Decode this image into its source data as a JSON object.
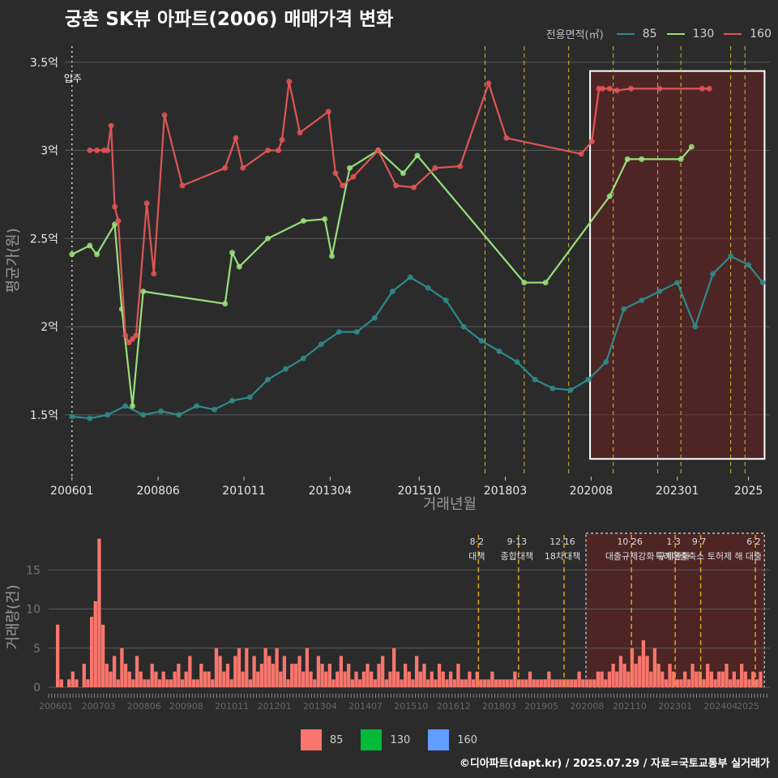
{
  "title": "궁촌 SK뷰 아파트(2006) 매매가격 변화",
  "legend": {
    "title": "전용면적(㎡)",
    "items": [
      {
        "label": "85",
        "color": "#2f8a8a"
      },
      {
        "label": "130",
        "color": "#98e07a"
      },
      {
        "label": "160",
        "color": "#e05555"
      }
    ]
  },
  "bar_legend": [
    {
      "label": "85",
      "color": "#f8766d"
    },
    {
      "label": "130",
      "color": "#00ba38"
    },
    {
      "label": "160",
      "color": "#619cff"
    }
  ],
  "source": "©디아파트(dapt.kr) / 2025.07.29 / 자료=국토교통부 실거래가",
  "chart_data": [
    {
      "type": "line",
      "xlabel": "거래년월",
      "ylabel": "평균가(원)",
      "x_ticks": [
        "200601",
        "200806",
        "201011",
        "201304",
        "201510",
        "201803",
        "202008",
        "202301",
        "2025"
      ],
      "y_ticks": [
        "1.5억",
        "2억",
        "2.5억",
        "3억",
        "3.5억"
      ],
      "y_tick_values": [
        1.5,
        2.0,
        2.5,
        3.0,
        3.5
      ],
      "ylim": [
        1.15,
        3.6
      ],
      "xlim": [
        2005.8,
        2025.6
      ],
      "unit": "억",
      "annotation": {
        "x": 2006.0,
        "label": "입주"
      },
      "policy_lines": [
        2017.6,
        2018.7,
        2019.95,
        2021.2,
        2022.45,
        2023.1,
        2024.5,
        2024.9
      ],
      "highlight_range": [
        2020.55,
        2025.45
      ],
      "series": [
        {
          "name": "160",
          "color": "#e05555",
          "x": [
            2006.5,
            2006.7,
            2006.9,
            2007.0,
            2007.1,
            2007.2,
            2007.3,
            2007.5,
            2007.6,
            2007.7,
            2007.8,
            2008.1,
            2008.3,
            2008.6,
            2009.1,
            2010.3,
            2010.6,
            2010.8,
            2011.5,
            2011.8,
            2011.9,
            2012.1,
            2012.4,
            2013.2,
            2013.4,
            2013.6,
            2013.9,
            2014.6,
            2015.1,
            2015.6,
            2016.2,
            2016.9,
            2017.7,
            2018.2,
            2020.3,
            2020.6,
            2020.8,
            2020.9,
            2021.1,
            2021.3,
            2021.7,
            2022.5,
            2023.7,
            2023.9
          ],
          "y": [
            3.0,
            3.0,
            3.0,
            3.0,
            3.14,
            2.68,
            2.6,
            1.95,
            1.91,
            1.93,
            1.95,
            2.7,
            2.3,
            3.2,
            2.8,
            2.9,
            3.07,
            2.9,
            3.0,
            3.0,
            3.06,
            3.39,
            3.1,
            3.22,
            2.87,
            2.8,
            2.85,
            3.0,
            2.8,
            2.79,
            2.9,
            2.91,
            3.38,
            3.07,
            2.98,
            3.05,
            3.35,
            3.35,
            3.35,
            3.34,
            3.35,
            3.35,
            3.35,
            3.35
          ]
        },
        {
          "name": "130",
          "color": "#98e07a",
          "x": [
            2006.0,
            2006.5,
            2006.7,
            2007.2,
            2007.4,
            2007.7,
            2008.0,
            2010.3,
            2010.5,
            2010.7,
            2011.5,
            2012.5,
            2013.1,
            2013.3,
            2013.8,
            2014.6,
            2015.3,
            2015.7,
            2018.7,
            2019.3,
            2021.1,
            2021.6,
            2022.0,
            2023.1,
            2023.4
          ],
          "y": [
            2.41,
            2.46,
            2.41,
            2.58,
            2.1,
            1.55,
            2.2,
            2.13,
            2.42,
            2.34,
            2.5,
            2.6,
            2.61,
            2.4,
            2.9,
            3.0,
            2.87,
            2.97,
            2.25,
            2.25,
            2.74,
            2.95,
            2.95,
            2.95,
            3.02
          ]
        },
        {
          "name": "85",
          "color": "#2f8a8a",
          "x": [
            2006.0,
            2006.5,
            2007.0,
            2007.5,
            2008.0,
            2008.5,
            2009.0,
            2009.5,
            2010.0,
            2010.5,
            2011.0,
            2011.5,
            2012.0,
            2012.5,
            2013.0,
            2013.5,
            2014.0,
            2014.5,
            2015.0,
            2015.5,
            2016.0,
            2016.5,
            2017.0,
            2017.5,
            2018.0,
            2018.5,
            2019.0,
            2019.5,
            2020.0,
            2020.5,
            2021.0,
            2021.5,
            2022.0,
            2022.5,
            2023.0,
            2023.5,
            2024.0,
            2024.5,
            2025.0,
            2025.4
          ],
          "y": [
            1.49,
            1.48,
            1.5,
            1.55,
            1.5,
            1.52,
            1.5,
            1.55,
            1.53,
            1.58,
            1.6,
            1.7,
            1.76,
            1.82,
            1.9,
            1.97,
            1.97,
            2.05,
            2.2,
            2.28,
            2.22,
            2.15,
            2.0,
            1.92,
            1.86,
            1.8,
            1.7,
            1.65,
            1.64,
            1.7,
            1.8,
            2.1,
            2.15,
            2.2,
            2.25,
            2.0,
            2.3,
            2.4,
            2.35,
            2.25
          ]
        }
      ]
    },
    {
      "type": "bar",
      "xlabel": "",
      "ylabel": "거래량(건)",
      "y_ticks": [
        "0",
        "5",
        "10",
        "15"
      ],
      "ylim": [
        0,
        20
      ],
      "x_ticks": [
        "200601",
        "200703",
        "200806",
        "200908",
        "201011",
        "201201",
        "201304",
        "201407",
        "201510",
        "201612",
        "201803",
        "201905",
        "202008",
        "202110",
        "202301",
        "202404",
        "2025"
      ],
      "policies": [
        {
          "x": 2017.6,
          "date": "8·2",
          "label": "대책"
        },
        {
          "x": 2018.7,
          "date": "9·13",
          "label": "종합대책"
        },
        {
          "x": 2019.95,
          "date": "12·16",
          "label": "18차대책"
        },
        {
          "x": 2021.8,
          "date": "10·26",
          "label": "대출규제강화"
        },
        {
          "x": 2023.0,
          "date": "1·3",
          "label": "규제완화"
        },
        {
          "x": 2023.7,
          "date": "9·7",
          "label": "특례대출축소 토허제 해"
        },
        {
          "x": 2025.2,
          "date": "6·2",
          "label": "대출"
        }
      ],
      "highlight_range": [
        2020.55,
        2025.45
      ],
      "series_values_monthly_85": [
        8,
        1,
        0,
        1,
        2,
        1,
        0,
        3,
        1,
        9,
        11,
        19,
        8,
        3,
        2,
        4,
        1,
        5,
        3,
        2,
        1,
        4,
        2,
        1,
        1,
        3,
        2,
        1,
        2,
        1,
        1,
        2,
        3,
        1,
        2,
        4,
        1,
        1,
        3,
        2,
        2,
        1,
        5,
        4,
        2,
        3,
        1,
        4,
        5,
        2,
        5,
        1,
        4,
        2,
        3,
        5,
        4,
        3,
        5,
        2,
        4,
        1,
        3,
        3,
        4,
        2,
        5,
        2,
        1,
        4,
        3,
        2,
        3,
        1,
        2,
        4,
        2,
        3,
        1,
        2,
        1,
        2,
        3,
        2,
        1,
        3,
        4,
        1,
        2,
        5,
        2,
        1,
        3,
        2,
        1,
        4,
        2,
        3,
        1,
        2,
        1,
        3,
        2,
        1,
        2,
        1,
        3,
        1,
        1,
        2,
        1,
        2,
        1,
        1,
        1,
        2,
        1,
        1,
        1,
        1,
        1,
        2,
        1,
        1,
        1,
        2,
        1,
        1,
        1,
        1,
        2,
        1,
        1,
        1,
        1,
        1,
        1,
        1,
        2,
        1,
        1,
        1,
        1,
        2,
        2,
        1,
        2,
        3,
        2,
        4,
        3,
        2,
        5,
        3,
        4,
        6,
        4,
        2,
        5,
        3,
        2,
        1,
        3,
        2,
        1,
        1,
        2,
        1,
        3,
        2,
        2,
        1,
        3,
        2,
        1,
        2,
        2,
        3,
        1,
        2,
        1,
        3,
        2,
        1,
        2,
        1,
        2
      ]
    }
  ]
}
